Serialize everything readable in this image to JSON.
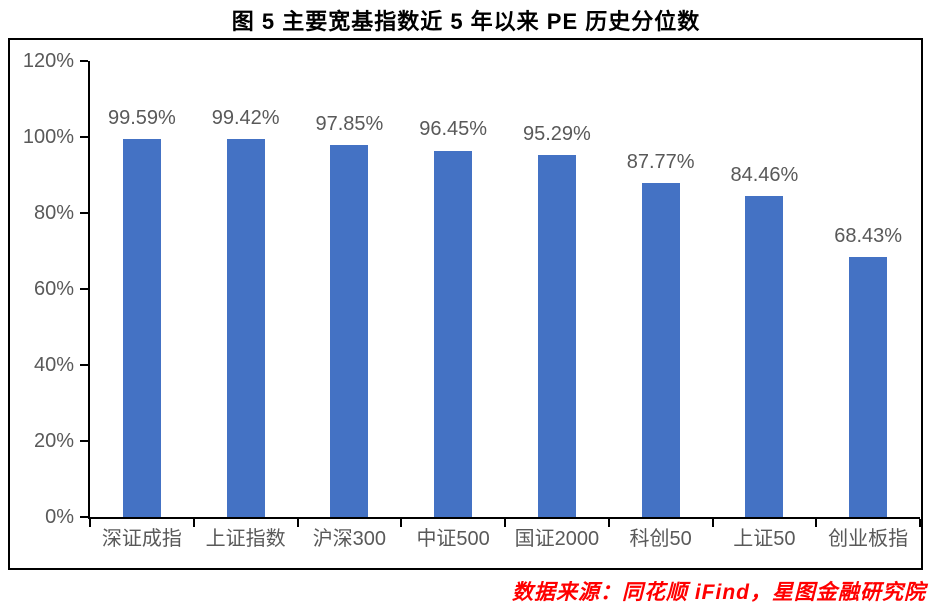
{
  "figure": {
    "title": "图 5 主要宽基指数近 5 年以来 PE 历史分位数",
    "source_note": "数据来源：同花顺 iFind，星图金融研究院"
  },
  "colors": {
    "bar": "#4472C4",
    "axis": "#000000",
    "tick_label": "#595959",
    "title": "#000000",
    "source_note": "#FF0000"
  },
  "chart_data": {
    "type": "bar",
    "title": "图 5 主要宽基指数近 5 年以来 PE 历史分位数",
    "categories": [
      "深证成指",
      "上证指数",
      "沪深300",
      "中证500",
      "国证2000",
      "科创50",
      "上证50",
      "创业板指"
    ],
    "values": [
      99.59,
      99.42,
      97.85,
      96.45,
      95.29,
      87.77,
      84.46,
      68.43
    ],
    "data_labels": [
      "99.59%",
      "99.42%",
      "97.85%",
      "96.45%",
      "95.29%",
      "87.77%",
      "84.46%",
      "68.43%"
    ],
    "xlabel": "",
    "ylabel": "",
    "ylim": [
      0,
      120
    ],
    "ytick_step": 20,
    "ytick_labels": [
      "0%",
      "20%",
      "40%",
      "60%",
      "80%",
      "100%",
      "120%"
    ],
    "grid": false,
    "legend": "none",
    "source": "数据来源：同花顺 iFind，星图金融研究院"
  }
}
